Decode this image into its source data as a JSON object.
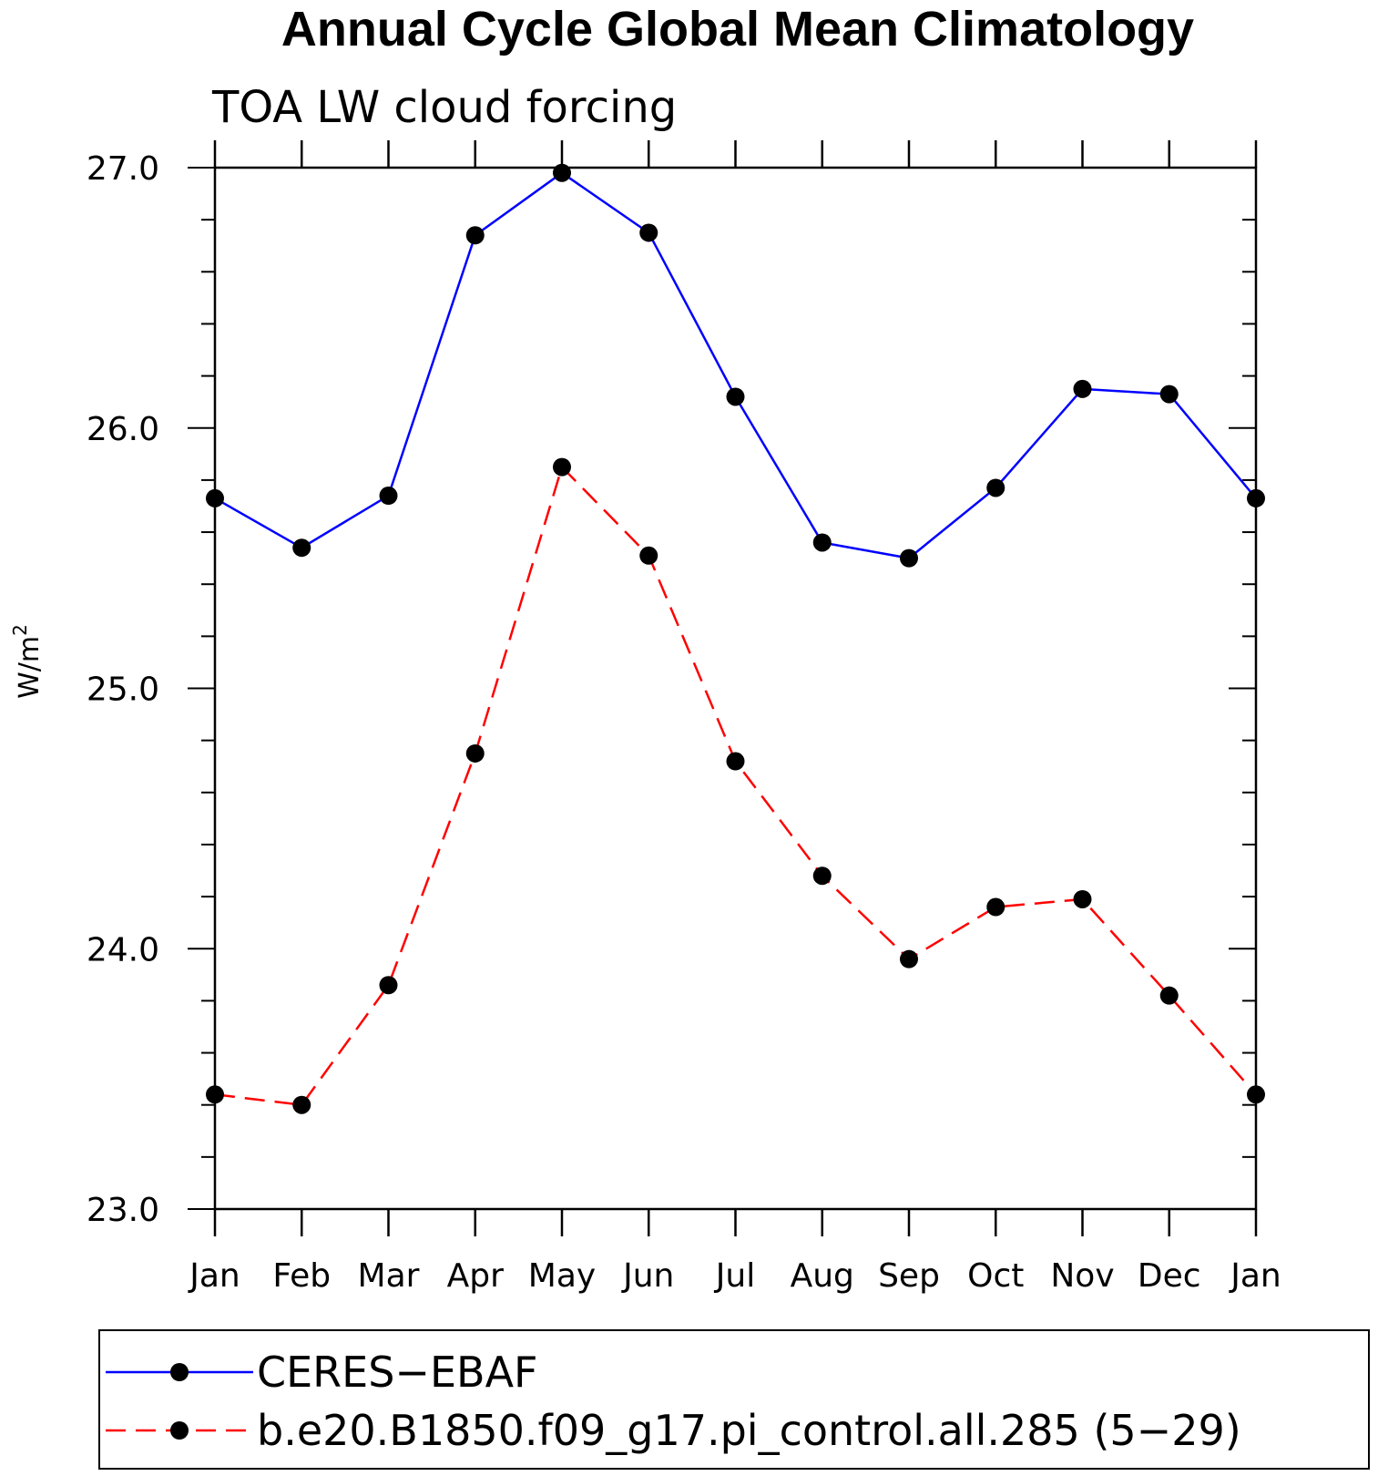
{
  "chart_data": {
    "type": "line",
    "title": "Annual Cycle Global Mean Climatology",
    "subtitle": "TOA LW cloud forcing",
    "ylabel": "W/m",
    "ylabel_superscript": "2",
    "ylim": [
      23.0,
      27.0
    ],
    "yticks": [
      "23.0",
      "24.0",
      "25.0",
      "26.0",
      "27.0"
    ],
    "categories": [
      "Jan",
      "Feb",
      "Mar",
      "Apr",
      "May",
      "Jun",
      "Jul",
      "Aug",
      "Sep",
      "Oct",
      "Nov",
      "Dec",
      "Jan"
    ],
    "series": [
      {
        "name": "CERES−EBAF",
        "color": "#0000ff",
        "line_style": "solid",
        "values": [
          25.73,
          25.54,
          25.74,
          26.74,
          26.98,
          26.75,
          26.12,
          25.56,
          25.5,
          25.77,
          26.15,
          26.13,
          25.73
        ]
      },
      {
        "name": "b.e20.B1850.f09_g17.pi_control.all.285 (5−29)",
        "color": "#ff0000",
        "line_style": "dashed",
        "values": [
          23.44,
          23.4,
          23.86,
          24.75,
          25.85,
          25.51,
          24.72,
          24.28,
          23.96,
          24.16,
          24.19,
          23.82,
          23.44
        ]
      }
    ],
    "legend_position": "bottom"
  }
}
